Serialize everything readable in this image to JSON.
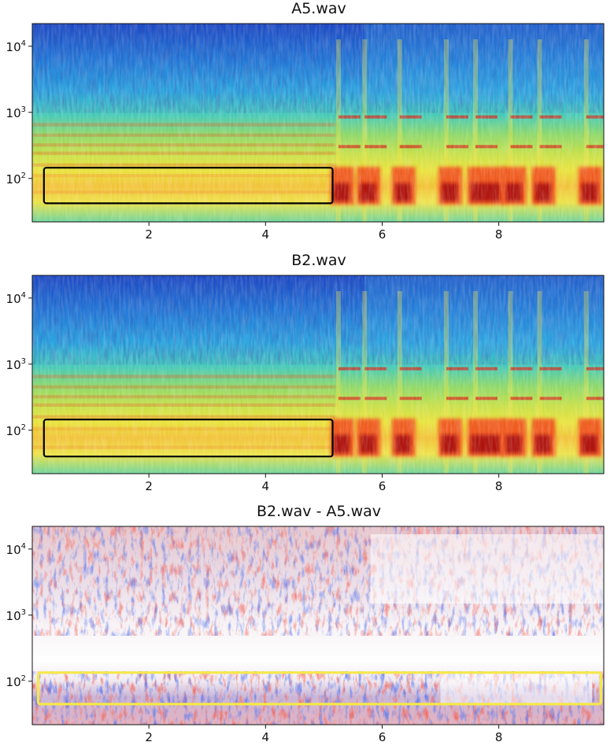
{
  "chart_data": [
    {
      "type": "heatmap",
      "title": "A5.wav",
      "x_ticks": [
        2,
        4,
        6,
        8
      ],
      "xlim": [
        0,
        9.8
      ],
      "y_scale": "log",
      "y_tick_values": [
        100,
        1000,
        10000
      ],
      "y_tick_base": "10",
      "y_tick_exponents": [
        "2",
        "3",
        "4"
      ],
      "ylim": [
        22,
        22000
      ],
      "colormap": "jet",
      "highlight_box": {
        "x": [
          0.2,
          5.15
        ],
        "y": [
          42,
          145
        ],
        "color": "#000000"
      },
      "harmonic_lines_hz": [
        62,
        110,
        160,
        240,
        320,
        450,
        650
      ]
    },
    {
      "type": "heatmap",
      "title": "B2.wav",
      "x_ticks": [
        2,
        4,
        6,
        8
      ],
      "xlim": [
        0,
        9.8
      ],
      "y_scale": "log",
      "y_tick_values": [
        100,
        1000,
        10000
      ],
      "y_tick_base": "10",
      "y_tick_exponents": [
        "2",
        "3",
        "4"
      ],
      "ylim": [
        22,
        22000
      ],
      "colormap": "jet",
      "highlight_box": {
        "x": [
          0.2,
          5.15
        ],
        "y": [
          40,
          145
        ],
        "color": "#000000"
      },
      "harmonic_lines_hz": [
        55,
        105,
        160,
        240,
        320,
        450,
        650
      ]
    },
    {
      "type": "heatmap",
      "title": "B2.wav - A5.wav",
      "x_ticks": [
        2,
        4,
        6,
        8
      ],
      "xlim": [
        0,
        9.8
      ],
      "y_scale": "log",
      "y_tick_values": [
        100,
        1000,
        10000
      ],
      "y_tick_base": "10",
      "y_tick_exponents": [
        "2",
        "3",
        "4"
      ],
      "ylim": [
        22,
        22000
      ],
      "colormap": "bwr",
      "highlight_box": {
        "x": [
          0.1,
          9.75
        ],
        "y": [
          45,
          135
        ],
        "color": "#f5e84a"
      }
    }
  ]
}
